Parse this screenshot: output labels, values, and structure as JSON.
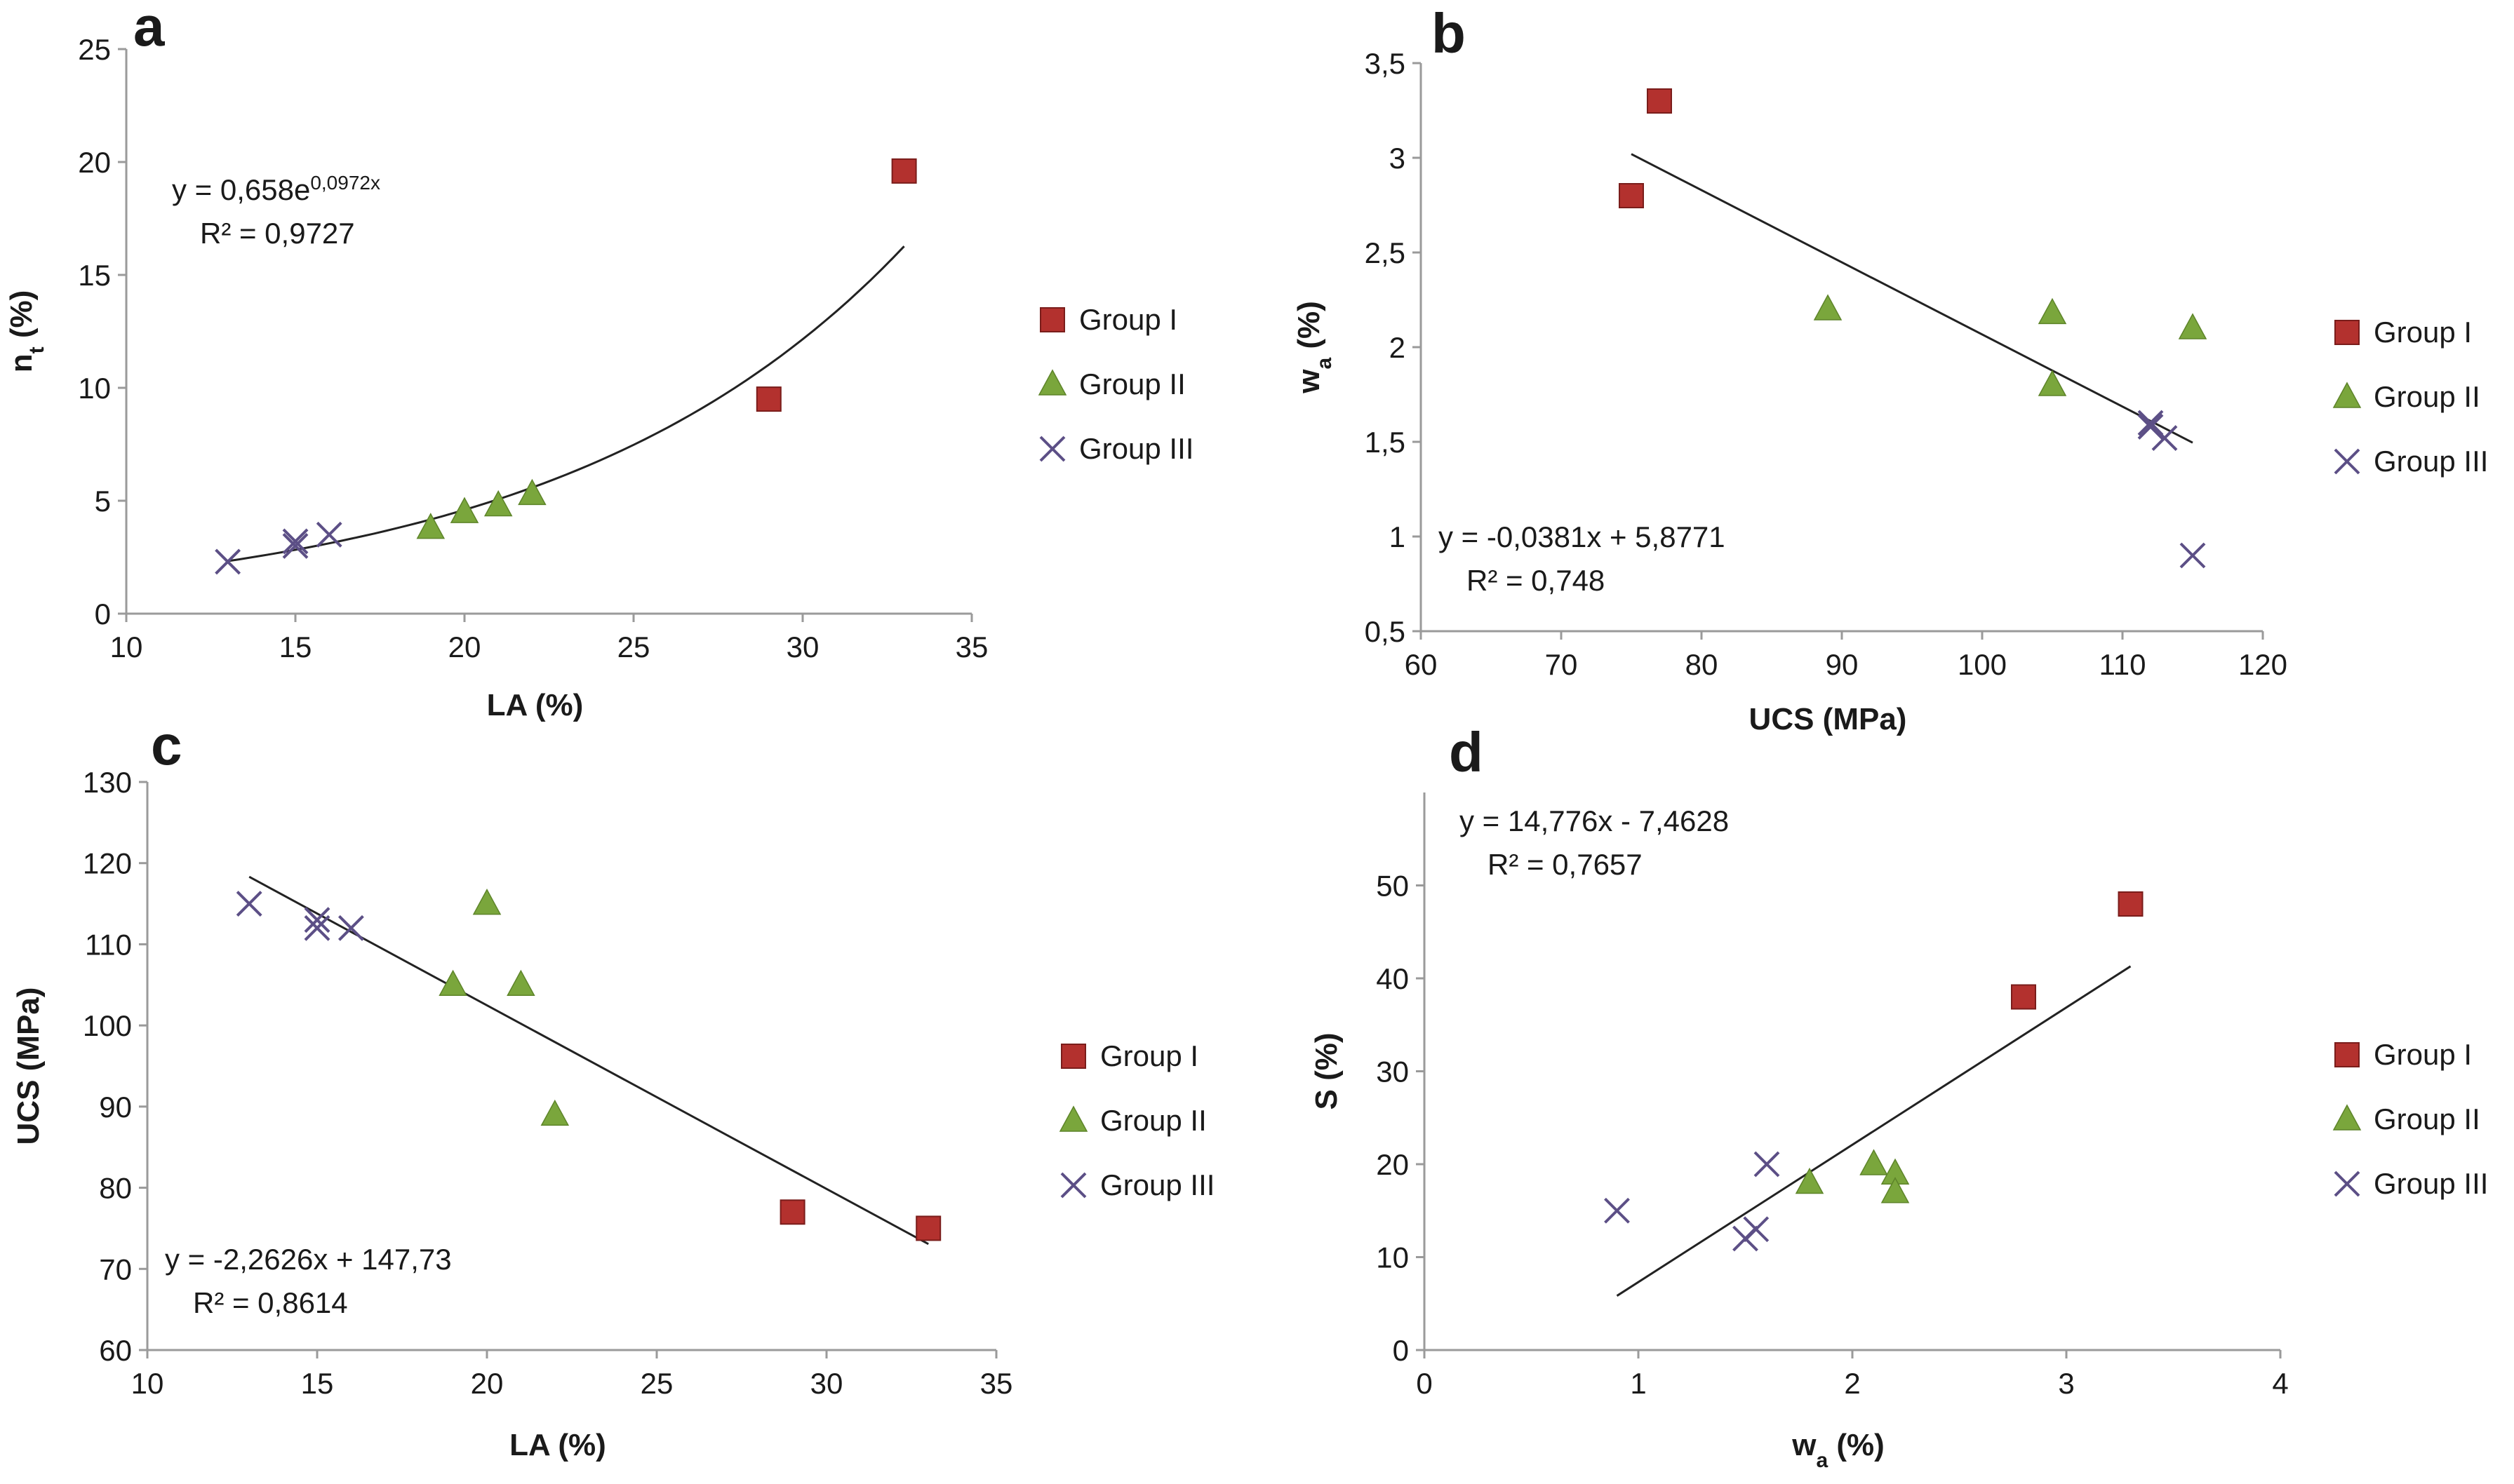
{
  "legend": [
    "Group I",
    "Group II",
    "Group III"
  ],
  "colors": {
    "group1": "#b3312e",
    "group2": "#7aa63c",
    "group3": "#5c4f86",
    "fit_line": "#222222",
    "axis": "#9a9a9a"
  },
  "chart_data": [
    {
      "panel": "a",
      "type": "scatter",
      "xlabel": "LA (%)",
      "ylabel": "nt (%)",
      "xlim": [
        10,
        35
      ],
      "ylim": [
        0,
        25
      ],
      "xticks": [
        10,
        15,
        20,
        25,
        30,
        35
      ],
      "yticks": [
        0,
        5,
        10,
        15,
        20,
        25
      ],
      "series": [
        {
          "name": "Group I",
          "points": [
            [
              29,
              9.5
            ],
            [
              33,
              19.6
            ]
          ]
        },
        {
          "name": "Group II",
          "points": [
            [
              19,
              3.8
            ],
            [
              20,
              4.5
            ],
            [
              21,
              4.8
            ],
            [
              22,
              5.3
            ]
          ]
        },
        {
          "name": "Group III",
          "points": [
            [
              13,
              2.3
            ],
            [
              15,
              3.0
            ],
            [
              15,
              3.2
            ],
            [
              16,
              3.5
            ]
          ]
        }
      ],
      "fit": {
        "kind": "exp",
        "a": 0.658,
        "b": 0.0972,
        "x_range": [
          13,
          33
        ],
        "equation_main": "y = 0,658e",
        "equation_sup": "0,0972x",
        "r2": "R² = 0,9727"
      }
    },
    {
      "panel": "b",
      "type": "scatter",
      "xlabel": "UCS (MPa)",
      "ylabel": "wa (%)",
      "xlim": [
        60,
        120
      ],
      "ylim": [
        0.5,
        3.5
      ],
      "xticks": [
        60,
        70,
        80,
        90,
        100,
        110,
        120
      ],
      "yticks": [
        "0,5",
        "1",
        "1,5",
        "2",
        "2,5",
        "3",
        "3,5"
      ],
      "series": [
        {
          "name": "Group I",
          "points": [
            [
              75,
              2.8
            ],
            [
              77,
              3.3
            ]
          ]
        },
        {
          "name": "Group II",
          "points": [
            [
              89,
              2.2
            ],
            [
              105,
              2.18
            ],
            [
              105,
              1.8
            ],
            [
              115,
              2.1
            ]
          ]
        },
        {
          "name": "Group III",
          "points": [
            [
              112,
              1.58
            ],
            [
              112,
              1.6
            ],
            [
              113,
              1.52
            ],
            [
              115,
              0.9
            ]
          ]
        }
      ],
      "fit": {
        "kind": "linear",
        "m": -0.0381,
        "c": 5.8771,
        "x_range": [
          75,
          115
        ],
        "equation_main": "y = -0,0381x + 5,8771",
        "r2": "R² = 0,748"
      }
    },
    {
      "panel": "c",
      "type": "scatter",
      "xlabel": "LA (%)",
      "ylabel": "UCS (MPa)",
      "xlim": [
        10,
        35
      ],
      "ylim": [
        60,
        130
      ],
      "xticks": [
        10,
        15,
        20,
        25,
        30,
        35
      ],
      "yticks": [
        60,
        70,
        80,
        90,
        100,
        110,
        120,
        130
      ],
      "series": [
        {
          "name": "Group I",
          "points": [
            [
              29,
              77
            ],
            [
              33,
              75
            ]
          ]
        },
        {
          "name": "Group II",
          "points": [
            [
              19,
              105
            ],
            [
              20,
              115
            ],
            [
              21,
              105
            ],
            [
              22,
              89
            ]
          ]
        },
        {
          "name": "Group III",
          "points": [
            [
              13,
              115
            ],
            [
              15,
              112
            ],
            [
              15,
              113
            ],
            [
              16,
              112
            ]
          ]
        }
      ],
      "fit": {
        "kind": "linear",
        "m": -2.2626,
        "c": 147.73,
        "x_range": [
          13,
          33
        ],
        "equation_main": "y = -2,2626x + 147,73",
        "r2": "R² = 0,8614"
      }
    },
    {
      "panel": "d",
      "type": "scatter",
      "xlabel": "wa (%)",
      "ylabel": "S (%)",
      "xlim": [
        0,
        4
      ],
      "ylim": [
        0,
        60
      ],
      "xticks": [
        0,
        1,
        2,
        3,
        4
      ],
      "yticks": [
        0,
        10,
        20,
        30,
        40,
        50
      ],
      "series": [
        {
          "name": "Group I",
          "points": [
            [
              2.8,
              38
            ],
            [
              3.3,
              48
            ]
          ]
        },
        {
          "name": "Group II",
          "points": [
            [
              1.8,
              18
            ],
            [
              2.1,
              20
            ],
            [
              2.2,
              19
            ],
            [
              2.2,
              17
            ]
          ]
        },
        {
          "name": "Group III",
          "points": [
            [
              0.9,
              15
            ],
            [
              1.5,
              12
            ],
            [
              1.55,
              13
            ],
            [
              1.6,
              20
            ]
          ]
        }
      ],
      "fit": {
        "kind": "linear",
        "m": 14.776,
        "c": -7.4628,
        "x_range": [
          0.9,
          3.3
        ],
        "equation_main": "y = 14,776x - 7,4628",
        "r2": "R² = 0,7657"
      }
    }
  ]
}
